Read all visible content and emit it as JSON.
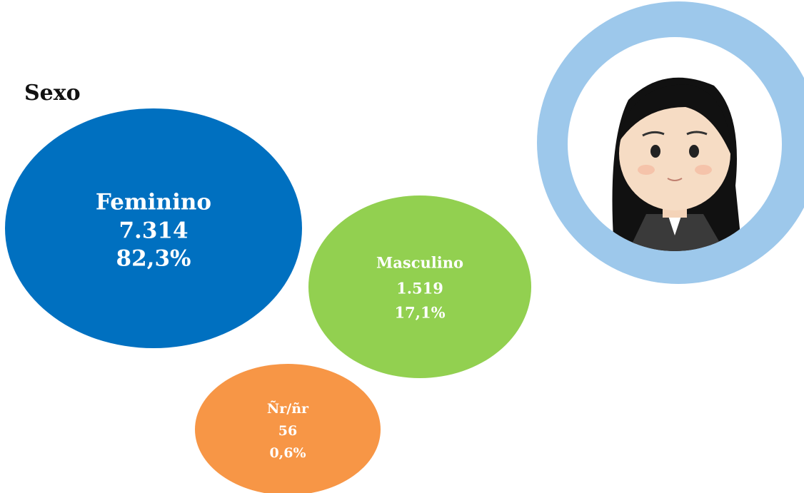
{
  "title": "Sexo",
  "bubbles": [
    {
      "label": "Feminino",
      "count": "7.314",
      "percent": "82,3%"
    },
    {
      "label": "Masculino",
      "count": "1.519",
      "percent": "17,1%"
    },
    {
      "label": "Ñr/ñr",
      "count": "56",
      "percent": "0,6%"
    }
  ]
}
